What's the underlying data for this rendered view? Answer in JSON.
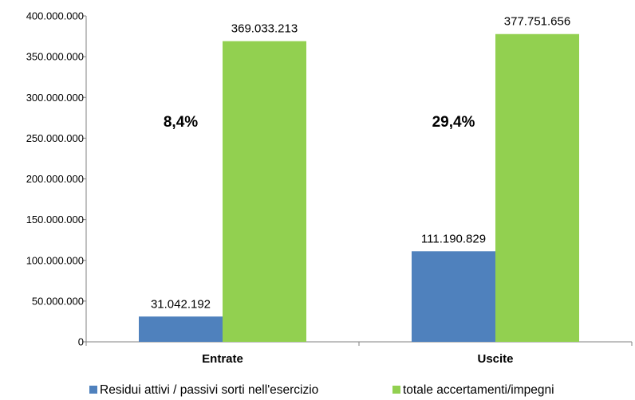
{
  "chart_data": {
    "type": "bar",
    "categories": [
      "Entrate",
      "Uscite"
    ],
    "series": [
      {
        "name": "Residui attivi / passivi sorti nell'esercizio",
        "color": "#4f81bd",
        "values": [
          31042192,
          111190829
        ],
        "labels": [
          "31.042.192",
          "111.190.829"
        ]
      },
      {
        "name": "totale accertamenti/impegni",
        "color": "#92d050",
        "values": [
          369033213,
          377751656
        ],
        "labels": [
          "369.033.213",
          "377.751.656"
        ]
      }
    ],
    "ylim": [
      0,
      400000000
    ],
    "yticks": [
      0,
      50000000,
      100000000,
      150000000,
      200000000,
      250000000,
      300000000,
      350000000,
      400000000
    ],
    "ytick_labels": [
      "0",
      "50.000.000",
      "100.000.000",
      "150.000.000",
      "200.000.000",
      "250.000.000",
      "300.000.000",
      "350.000.000",
      "400.000.000"
    ],
    "annotations": [
      "8,4%",
      "29,4%"
    ],
    "legend_position": "bottom",
    "grid": false
  }
}
